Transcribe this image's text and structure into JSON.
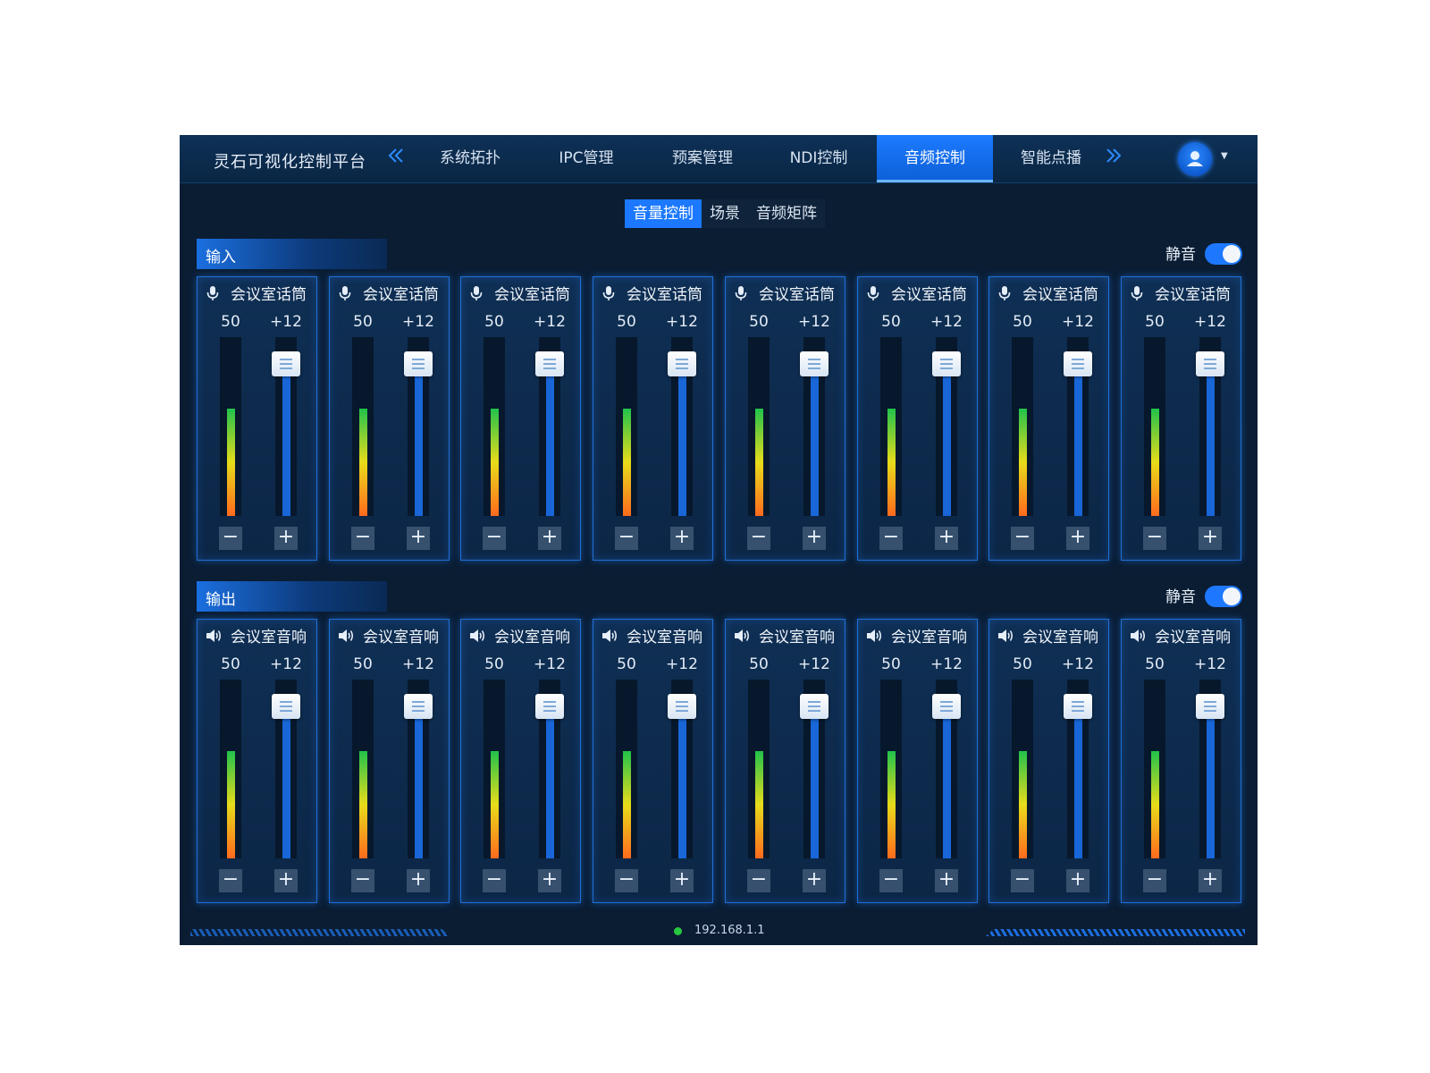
{
  "header": {
    "title": "灵石可视化控制平台",
    "prev_icon": "double-chevron-left",
    "next_icon": "double-chevron-right",
    "tabs": [
      {
        "label": "系统拓扑",
        "active": false
      },
      {
        "label": "IPC管理",
        "active": false
      },
      {
        "label": "预案管理",
        "active": false
      },
      {
        "label": "NDI控制",
        "active": false
      },
      {
        "label": "音频控制",
        "active": true
      },
      {
        "label": "智能点播",
        "active": false
      }
    ],
    "user_icon": "user-icon"
  },
  "subtabs": [
    {
      "label": "音量控制",
      "active": true
    },
    {
      "label": "场景",
      "active": false
    },
    {
      "label": "音频矩阵",
      "active": false
    }
  ],
  "input": {
    "title": "输入",
    "mute_label": "静音",
    "mute_on": true,
    "channel_icon": "microphone-icon",
    "channels": [
      {
        "name": "会议室话筒",
        "level": "50",
        "gain": "+12",
        "meter_level": 0.6,
        "fader_level": 0.85
      },
      {
        "name": "会议室话筒",
        "level": "50",
        "gain": "+12",
        "meter_level": 0.6,
        "fader_level": 0.85
      },
      {
        "name": "会议室话筒",
        "level": "50",
        "gain": "+12",
        "meter_level": 0.6,
        "fader_level": 0.85
      },
      {
        "name": "会议室话筒",
        "level": "50",
        "gain": "+12",
        "meter_level": 0.6,
        "fader_level": 0.85
      },
      {
        "name": "会议室话筒",
        "level": "50",
        "gain": "+12",
        "meter_level": 0.6,
        "fader_level": 0.85
      },
      {
        "name": "会议室话筒",
        "level": "50",
        "gain": "+12",
        "meter_level": 0.6,
        "fader_level": 0.85
      },
      {
        "name": "会议室话筒",
        "level": "50",
        "gain": "+12",
        "meter_level": 0.6,
        "fader_level": 0.85
      },
      {
        "name": "会议室话筒",
        "level": "50",
        "gain": "+12",
        "meter_level": 0.6,
        "fader_level": 0.85
      }
    ]
  },
  "output": {
    "title": "输出",
    "mute_label": "静音",
    "mute_on": true,
    "channel_icon": "speaker-icon",
    "channels": [
      {
        "name": "会议室音响",
        "level": "50",
        "gain": "+12",
        "meter_level": 0.6,
        "fader_level": 0.85
      },
      {
        "name": "会议室音响",
        "level": "50",
        "gain": "+12",
        "meter_level": 0.6,
        "fader_level": 0.85
      },
      {
        "name": "会议室音响",
        "level": "50",
        "gain": "+12",
        "meter_level": 0.6,
        "fader_level": 0.85
      },
      {
        "name": "会议室音响",
        "level": "50",
        "gain": "+12",
        "meter_level": 0.6,
        "fader_level": 0.85
      },
      {
        "name": "会议室音响",
        "level": "50",
        "gain": "+12",
        "meter_level": 0.6,
        "fader_level": 0.85
      },
      {
        "name": "会议室音响",
        "level": "50",
        "gain": "+12",
        "meter_level": 0.6,
        "fader_level": 0.85
      },
      {
        "name": "会议室音响",
        "level": "50",
        "gain": "+12",
        "meter_level": 0.6,
        "fader_level": 0.85
      },
      {
        "name": "会议室音响",
        "level": "50",
        "gain": "+12",
        "meter_level": 0.6,
        "fader_level": 0.85
      }
    ]
  },
  "buttons": {
    "minus": "−",
    "plus": "+"
  },
  "footer": {
    "ip": "192.168.1.1",
    "status_color": "#28c840"
  },
  "colors": {
    "accent": "#1b78ff",
    "background": "#0a1d33"
  }
}
